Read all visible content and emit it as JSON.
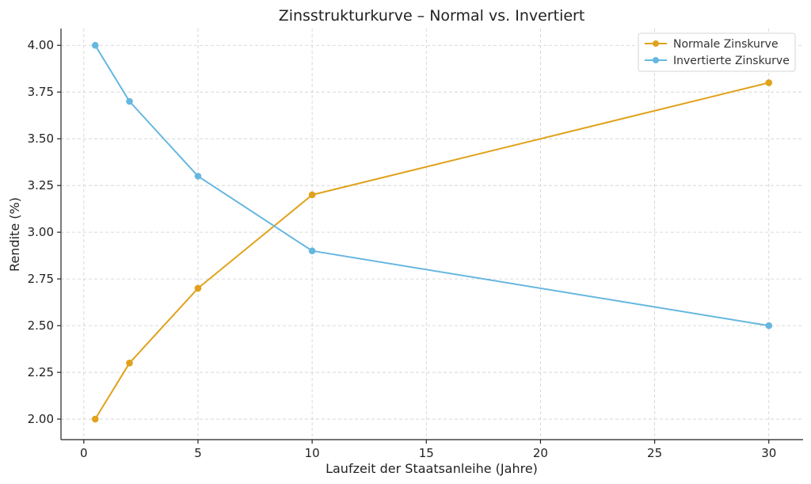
{
  "chart_data": {
    "type": "line",
    "title": "Zinsstrukturkurve – Normal vs. Invertiert",
    "xlabel": "Laufzeit der Staatsanleihe (Jahre)",
    "ylabel": "Rendite (%)",
    "xlim": [
      -1,
      31.5
    ],
    "ylim": [
      1.89,
      4.09
    ],
    "x_ticks": [
      0,
      5,
      10,
      15,
      20,
      25,
      30
    ],
    "x_tick_labels": [
      "0",
      "5",
      "10",
      "15",
      "20",
      "25",
      "30"
    ],
    "y_ticks": [
      2.0,
      2.25,
      2.5,
      2.75,
      3.0,
      3.25,
      3.5,
      3.75,
      4.0
    ],
    "y_tick_labels": [
      "2.00",
      "2.25",
      "2.50",
      "2.75",
      "3.00",
      "3.25",
      "3.50",
      "3.75",
      "4.00"
    ],
    "grid": true,
    "legend_position": "top-right",
    "x": [
      0.5,
      2,
      5,
      10,
      30
    ],
    "series": [
      {
        "name": "Normale Zinskurve",
        "color": "#E0A21B",
        "values": [
          2.0,
          2.3,
          2.7,
          3.2,
          3.8
        ]
      },
      {
        "name": "Invertierte Zinskurve",
        "color": "#66B7E0",
        "values": [
          4.0,
          3.7,
          3.3,
          2.9,
          2.5
        ]
      }
    ]
  }
}
